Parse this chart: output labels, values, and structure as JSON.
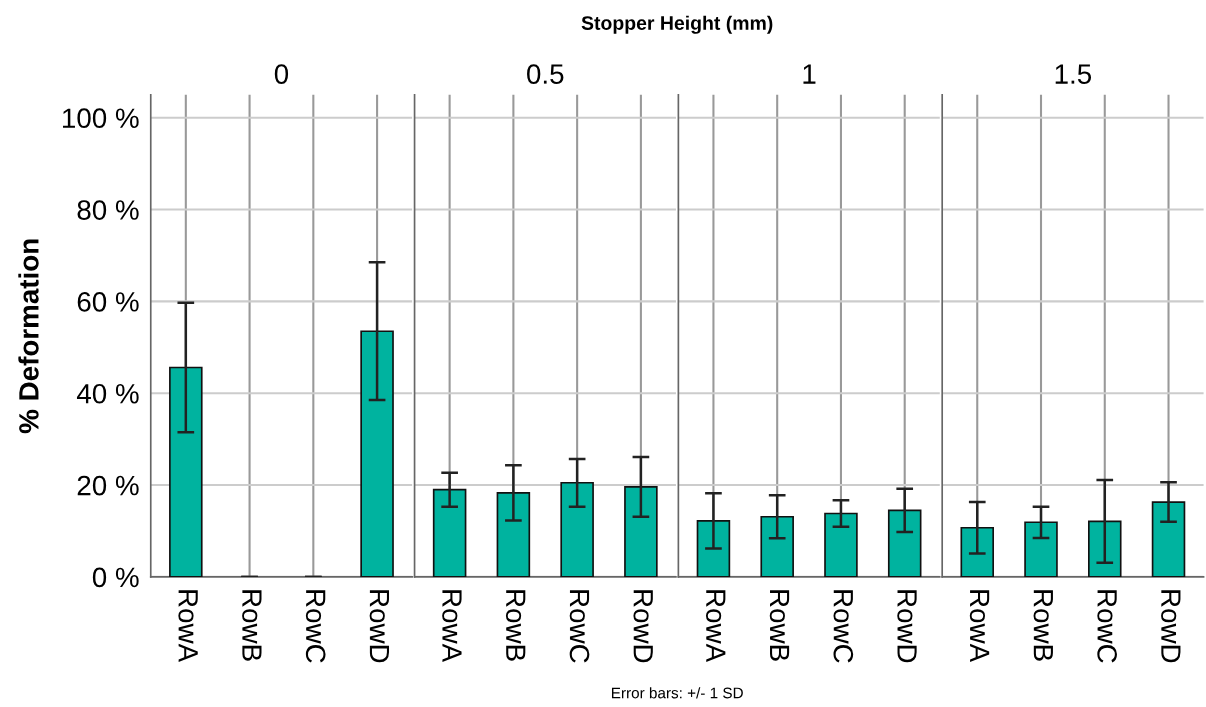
{
  "chart_data": [
    {
      "type": "bar",
      "title": "0",
      "ylabel": "% Deformation",
      "annotations": [
        "Stopper Height (mm)",
        "Error bars: +/- 1 SD"
      ],
      "categories": [
        "RowA",
        "RowB",
        "RowC",
        "RowD"
      ],
      "values": [
        45.6,
        0,
        0,
        53.5
      ],
      "errors": [
        14.1,
        0,
        0,
        15.0
      ],
      "color": "#00b39f",
      "ylim": [
        0,
        105
      ],
      "yticks": [
        {
          "value": 0,
          "label": "0 %"
        },
        {
          "value": 20,
          "label": "20 %"
        },
        {
          "value": 40,
          "label": "40 %"
        },
        {
          "value": 60,
          "label": "60 %"
        },
        {
          "value": 80,
          "label": "80 %"
        },
        {
          "value": 100,
          "label": "100 %"
        }
      ],
      "grid": true
    },
    {
      "type": "bar",
      "title": "0.5",
      "categories": [
        "RowA",
        "RowB",
        "RowC",
        "RowD"
      ],
      "values": [
        19.0,
        18.3,
        20.5,
        19.6
      ],
      "errors": [
        3.7,
        6.0,
        5.2,
        6.5
      ],
      "color": "#00b39f",
      "ylim": [
        0,
        105
      ],
      "yticks": [
        0,
        20,
        40,
        60,
        80,
        100
      ],
      "tick_labels": "x",
      "grid": true
    },
    {
      "type": "bar",
      "title": "1",
      "categories": [
        "RowA",
        "RowB",
        "RowC",
        "RowD"
      ],
      "values": [
        12.2,
        13.1,
        13.8,
        14.5
      ],
      "errors": [
        6.0,
        4.7,
        2.9,
        4.7
      ],
      "color": "#00b39f",
      "ylim": [
        0,
        105
      ],
      "yticks": [
        0,
        20,
        40,
        60,
        80,
        100
      ],
      "tick_labels": "x",
      "grid": true
    },
    {
      "type": "bar",
      "title": "1.5",
      "categories": [
        "RowA",
        "RowB",
        "RowC",
        "RowD"
      ],
      "values": [
        10.7,
        11.9,
        12.1,
        16.3
      ],
      "errors": [
        5.6,
        3.4,
        9.0,
        4.3
      ],
      "color": "#00b39f",
      "ylim": [
        0,
        105
      ],
      "yticks": [
        0,
        20,
        40,
        60,
        80,
        100
      ],
      "tick_labels": "x",
      "grid": true
    }
  ]
}
